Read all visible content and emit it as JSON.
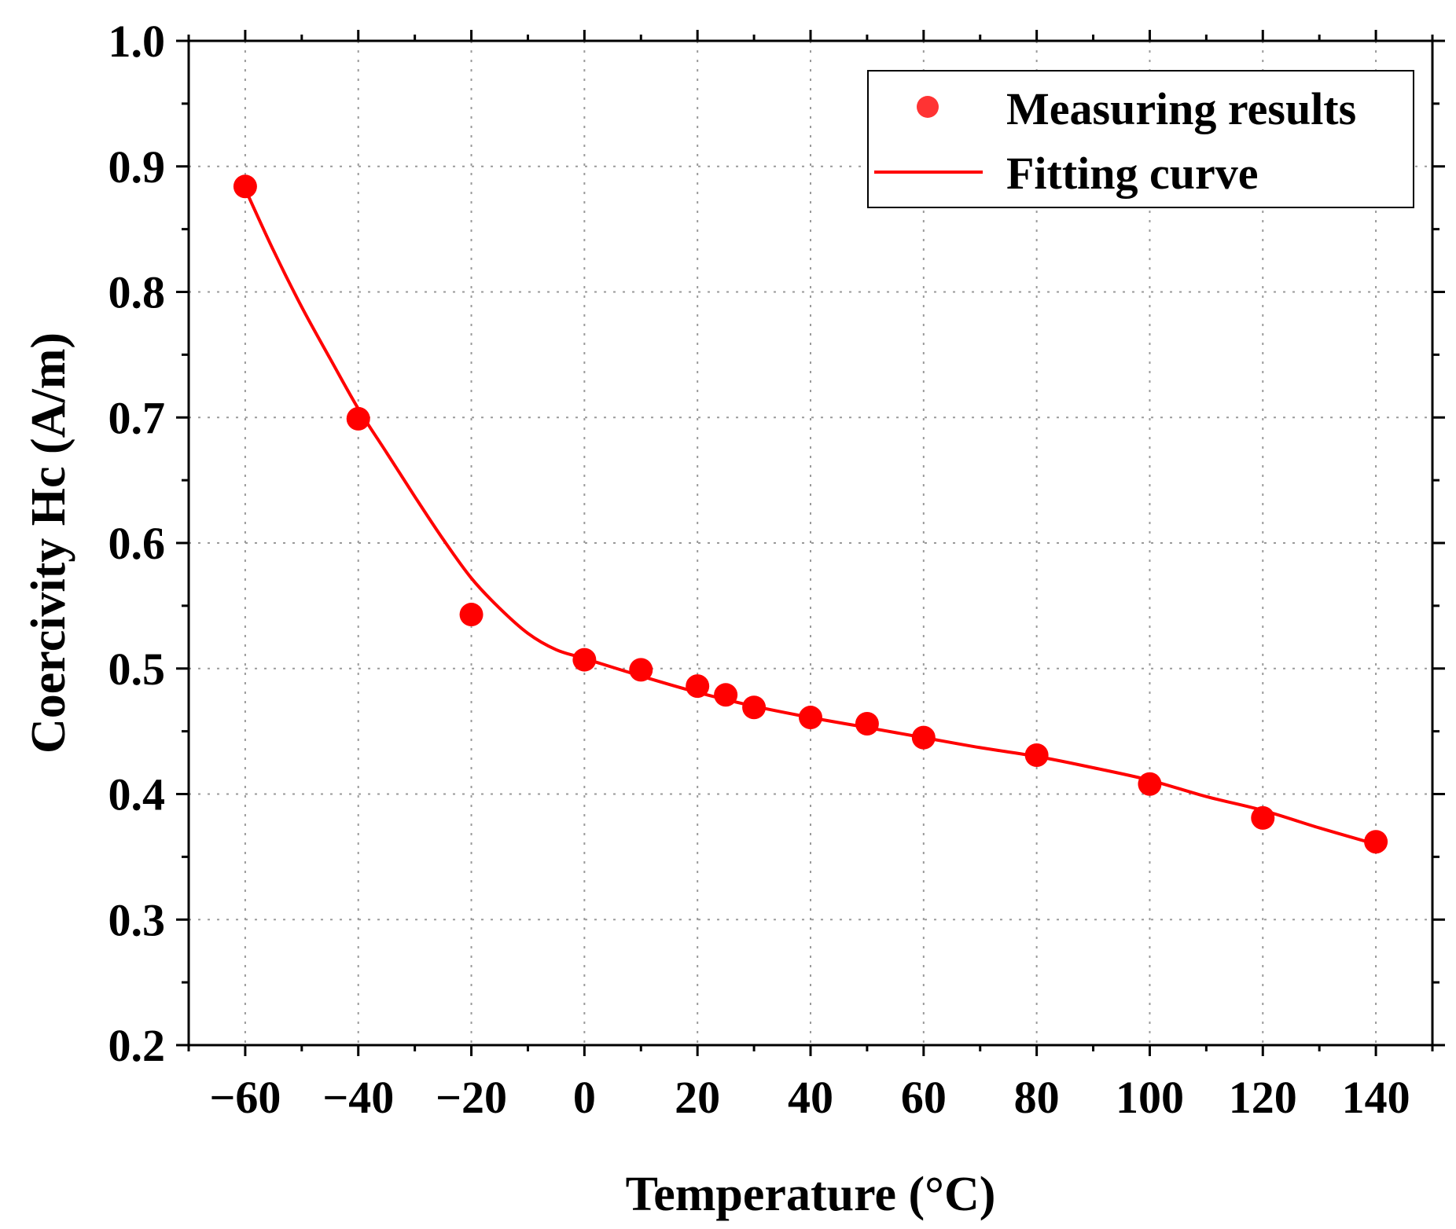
{
  "chart_data": {
    "type": "scatter",
    "title": "",
    "xlabel": "Temperature (°C)",
    "ylabel": "Coercivity Hc (A/m)",
    "xlim": [
      -70,
      150
    ],
    "ylim": [
      0.2,
      1.0
    ],
    "x_ticks": [
      -60,
      -40,
      -20,
      0,
      20,
      40,
      60,
      80,
      100,
      120,
      140
    ],
    "x_tick_labels": [
      "−60",
      "−40",
      "−20",
      "0",
      "20",
      "40",
      "60",
      "80",
      "100",
      "120",
      "140"
    ],
    "y_ticks": [
      0.2,
      0.3,
      0.4,
      0.5,
      0.6,
      0.7,
      0.8,
      0.9,
      1.0
    ],
    "y_tick_labels": [
      "0.2",
      "0.3",
      "0.4",
      "0.5",
      "0.6",
      "0.7",
      "0.8",
      "0.9",
      "1.0"
    ],
    "grid": true,
    "legend_position": "top-right",
    "series": [
      {
        "name": "Measuring results",
        "kind": "scatter",
        "color": "#ff0000",
        "x": [
          -60,
          -40,
          -20,
          0,
          10,
          20,
          25,
          30,
          40,
          50,
          60,
          80,
          100,
          120,
          140
        ],
        "y": [
          0.884,
          0.699,
          0.543,
          0.507,
          0.499,
          0.486,
          0.479,
          0.469,
          0.461,
          0.456,
          0.445,
          0.431,
          0.408,
          0.381,
          0.362
        ]
      },
      {
        "name": "Fitting curve",
        "kind": "line",
        "color": "#ff0000",
        "x": [
          -60,
          -55,
          -50,
          -45,
          -40,
          -35,
          -30,
          -25,
          -20,
          -15,
          -10,
          -5,
          0,
          10,
          20,
          30,
          40,
          50,
          60,
          70,
          80,
          90,
          100,
          110,
          120,
          130,
          140
        ],
        "y": [
          0.882,
          0.833,
          0.788,
          0.747,
          0.707,
          0.672,
          0.637,
          0.603,
          0.572,
          0.548,
          0.528,
          0.515,
          0.508,
          0.494,
          0.481,
          0.47,
          0.461,
          0.453,
          0.445,
          0.437,
          0.43,
          0.421,
          0.411,
          0.398,
          0.387,
          0.373,
          0.36
        ]
      }
    ]
  }
}
